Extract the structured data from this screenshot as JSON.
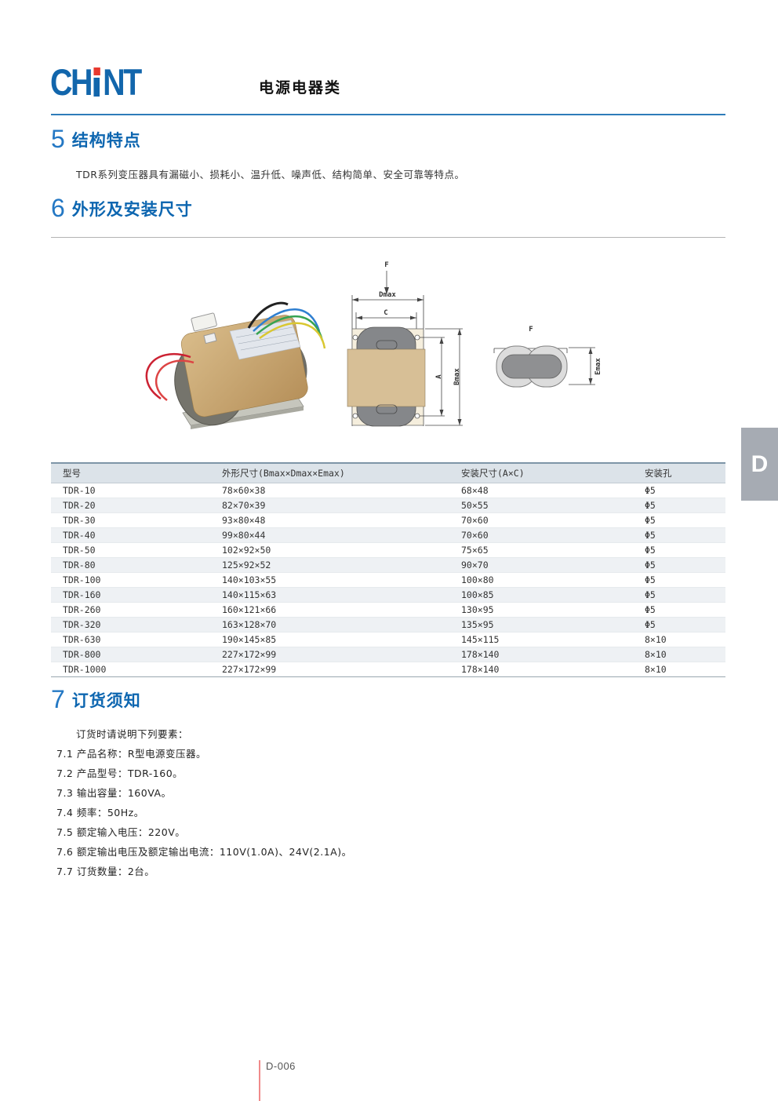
{
  "brand": {
    "logo_left": "CH",
    "logo_right": "NT",
    "blue": "#1266ac",
    "red": "#e8392f"
  },
  "header": {
    "category_title": "电源电器类"
  },
  "sections": {
    "s5": {
      "number": "5",
      "title": "结构特点",
      "body": "TDR系列变压器具有漏磁小、损耗小、温升低、噪声低、结构简单、安全可靠等特点。"
    },
    "s6": {
      "number": "6",
      "title": "外形及安装尺寸"
    },
    "s7": {
      "number": "7",
      "title": "订货须知",
      "intro": "订货时请说明下列要素：",
      "items": [
        {
          "no": "7.1",
          "text": "产品名称：R型电源变压器。"
        },
        {
          "no": "7.2",
          "text": "产品型号：TDR-160。"
        },
        {
          "no": "7.3",
          "text": "输出容量：160VA。"
        },
        {
          "no": "7.4",
          "text": "频率：50Hz。"
        },
        {
          "no": "7.5",
          "text": "额定输入电压：220V。"
        },
        {
          "no": "7.6",
          "text": "额定输出电压及额定输出电流：110V(1.0A)、24V(2.1A)。"
        },
        {
          "no": "7.7",
          "text": "订货数量：2台。"
        }
      ]
    }
  },
  "diagram": {
    "front_view": {
      "f": "F",
      "dmax": "Dmax",
      "c": "C",
      "a": "A",
      "bmax": "Bmax"
    },
    "side_view": {
      "f": "F",
      "emax": "Emax"
    }
  },
  "table": {
    "headers": [
      "型号",
      "外形尺寸(Bmax×Dmax×Emax)",
      "安装尺寸(A×C)",
      "安装孔"
    ],
    "rows": [
      [
        "TDR-10",
        "78×60×38",
        "68×48",
        "Φ5"
      ],
      [
        "TDR-20",
        "82×70×39",
        "50×55",
        "Φ5"
      ],
      [
        "TDR-30",
        "93×80×48",
        "70×60",
        "Φ5"
      ],
      [
        "TDR-40",
        "99×80×44",
        "70×60",
        "Φ5"
      ],
      [
        "TDR-50",
        "102×92×50",
        "75×65",
        "Φ5"
      ],
      [
        "TDR-80",
        "125×92×52",
        "90×70",
        "Φ5"
      ],
      [
        "TDR-100",
        "140×103×55",
        "100×80",
        "Φ5"
      ],
      [
        "TDR-160",
        "140×115×63",
        "100×85",
        "Φ5"
      ],
      [
        "TDR-260",
        "160×121×66",
        "130×95",
        "Φ5"
      ],
      [
        "TDR-320",
        "163×128×70",
        "135×95",
        "Φ5"
      ],
      [
        "TDR-630",
        "190×145×85",
        "145×115",
        "8×10"
      ],
      [
        "TDR-800",
        "227×172×99",
        "178×140",
        "8×10"
      ],
      [
        "TDR-1000",
        "227×172×99",
        "178×140",
        "8×10"
      ]
    ]
  },
  "side_tab": {
    "label": "D"
  },
  "footer": {
    "page_number": "D-006"
  }
}
